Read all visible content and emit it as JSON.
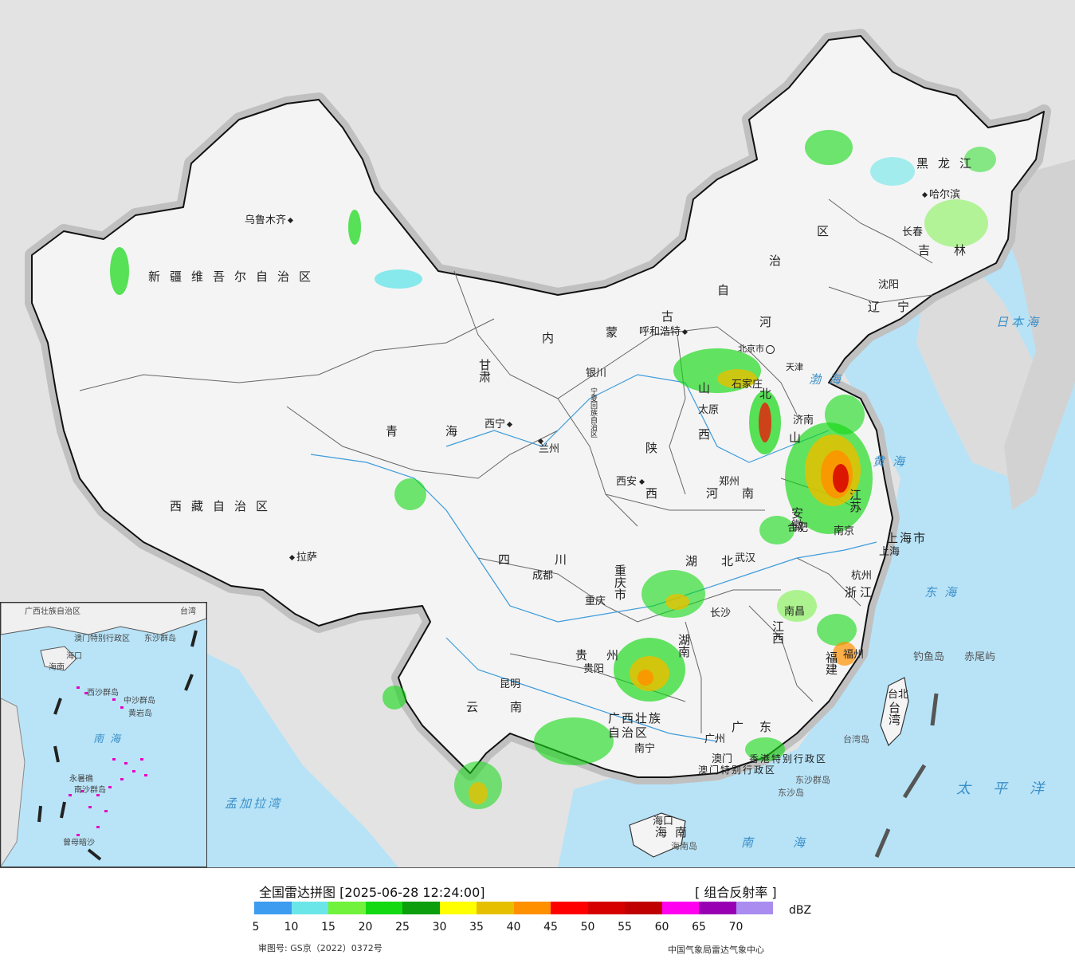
{
  "legend": {
    "title": "全国雷达拼图 [2025-06-28 12:24:00]",
    "product": "[ 组合反射率 ]",
    "unit": "dBZ",
    "approval": "审图号: GS京（2022）0372号",
    "agency": "中国气象局雷达气象中心",
    "scale_ticks": [
      "5",
      "10",
      "15",
      "20",
      "25",
      "30",
      "35",
      "40",
      "45",
      "50",
      "55",
      "60",
      "65",
      "70"
    ],
    "scale_colors": [
      "#3d9cf0",
      "#6be6e8",
      "#71f23c",
      "#13d913",
      "#0c9e0c",
      "#ffff00",
      "#e6c000",
      "#ff9000",
      "#ff0000",
      "#d60000",
      "#c00000",
      "#ff00f0",
      "#9800b4",
      "#aa8cf0"
    ]
  },
  "provinces": {
    "xinjiang": "新疆维吾尔自治区",
    "xizang": "西藏自治区",
    "qinghai": "青海",
    "gansu": "甘肃",
    "neimenggu": [
      "内",
      "蒙",
      "古",
      "自",
      "治",
      "区"
    ],
    "heilongjiang": "黑龙江",
    "jilin": "吉林",
    "liaoning": "辽宁",
    "hebei": "北",
    "hebei_he": "河",
    "shanxi": [
      "山",
      "西"
    ],
    "shandong": "山",
    "shaanxi": [
      "陕",
      "西"
    ],
    "henan": "河南",
    "hubei": "湖北",
    "hunan": "湖南",
    "sichuan": "四川",
    "chongqing": "重庆市",
    "guizhou": "贵州",
    "yunnan": "云南",
    "guangxi": "广西壮族自治区",
    "guangdong": "广东",
    "jiangxi": "江西",
    "fujian": "福建",
    "zhejiang": "浙江",
    "jiangsu": "江苏",
    "anhui": "安徽",
    "shanghai": "上海市",
    "taiwan": "台湾",
    "hainan": "海南",
    "ningxia": "宁夏回族自治区",
    "hk": "香港特别行政区",
    "macau": "澳门特别行政区"
  },
  "cities": [
    {
      "name": "乌鲁木齐"
    },
    {
      "name": "拉萨"
    },
    {
      "name": "西宁"
    },
    {
      "name": "兰州"
    },
    {
      "name": "银川"
    },
    {
      "name": "呼和浩特"
    },
    {
      "name": "北京市"
    },
    {
      "name": "天津"
    },
    {
      "name": "石家庄"
    },
    {
      "name": "太原"
    },
    {
      "name": "济南"
    },
    {
      "name": "郑州"
    },
    {
      "name": "西安"
    },
    {
      "name": "成都"
    },
    {
      "name": "重庆"
    },
    {
      "name": "武汉"
    },
    {
      "name": "合肥"
    },
    {
      "name": "南京"
    },
    {
      "name": "上海"
    },
    {
      "name": "杭州"
    },
    {
      "name": "南昌"
    },
    {
      "name": "长沙"
    },
    {
      "name": "贵阳"
    },
    {
      "name": "昆明"
    },
    {
      "name": "南宁"
    },
    {
      "name": "广州"
    },
    {
      "name": "澳门"
    },
    {
      "name": "福州"
    },
    {
      "name": "台北"
    },
    {
      "name": "海口"
    },
    {
      "name": "沈阳"
    },
    {
      "name": "长春"
    },
    {
      "name": "哈尔滨"
    }
  ],
  "seas": {
    "bohai": "渤海",
    "huanghai": "黄海",
    "donghai": "东海",
    "nanhai": "南海",
    "japan": "日本海",
    "pacific": "太平洋",
    "bengal": "孟加拉湾"
  },
  "islands": {
    "diaoyu": "钓鱼岛",
    "chiwei": "赤尾屿",
    "taiwan_island": "台湾岛",
    "hainan_island": "海南岛",
    "dongsha": "东沙群岛",
    "dongsha_island": "东沙岛"
  },
  "inset": {
    "sea": "南海",
    "labels": [
      "澳门特别行政区",
      "广西壮族自治区",
      "海口",
      "海南",
      "西沙群岛",
      "中沙群岛",
      "黄岩岛",
      "南沙群岛",
      "永暑礁",
      "曾母暗沙",
      "东沙群岛",
      "台湾"
    ]
  }
}
